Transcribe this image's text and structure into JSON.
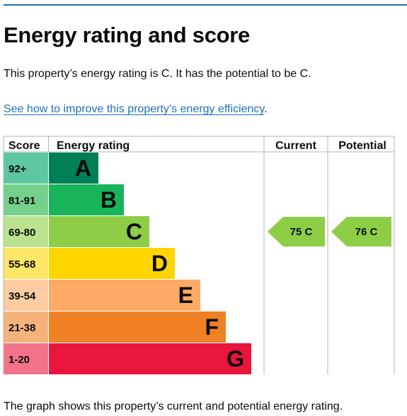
{
  "page": {
    "heading": "Energy rating and score",
    "summary": "This property’s energy rating is C. It has the potential to be C.",
    "improve_link": "See how to improve this property’s energy efficiency",
    "improve_link_suffix": ".",
    "caption": "The graph shows this property’s current and potential energy rating."
  },
  "chart_data": {
    "type": "bar",
    "headers": {
      "score": "Score",
      "rating": "Energy rating",
      "current": "Current",
      "potential": "Potential"
    },
    "bands": [
      {
        "letter": "A",
        "range": "92+",
        "color": "#008054",
        "score_color": "#5ec7a0"
      },
      {
        "letter": "B",
        "range": "81-91",
        "color": "#19b459",
        "score_color": "#75d08c"
      },
      {
        "letter": "C",
        "range": "69-80",
        "color": "#8dce46",
        "score_color": "#bbe290"
      },
      {
        "letter": "D",
        "range": "55-68",
        "color": "#ffd500",
        "score_color": "#ffe666"
      },
      {
        "letter": "E",
        "range": "39-54",
        "color": "#fcaa65",
        "score_color": "#fdcca3"
      },
      {
        "letter": "F",
        "range": "21-38",
        "color": "#ef8023",
        "score_color": "#f5b37b"
      },
      {
        "letter": "G",
        "range": "1-20",
        "color": "#e9153b",
        "score_color": "#f27389"
      }
    ],
    "current": {
      "score": 75,
      "band": "C",
      "label": "75  C",
      "color": "#8dce46"
    },
    "potential": {
      "score": 76,
      "band": "C",
      "label": "76  C",
      "color": "#8dce46"
    }
  }
}
